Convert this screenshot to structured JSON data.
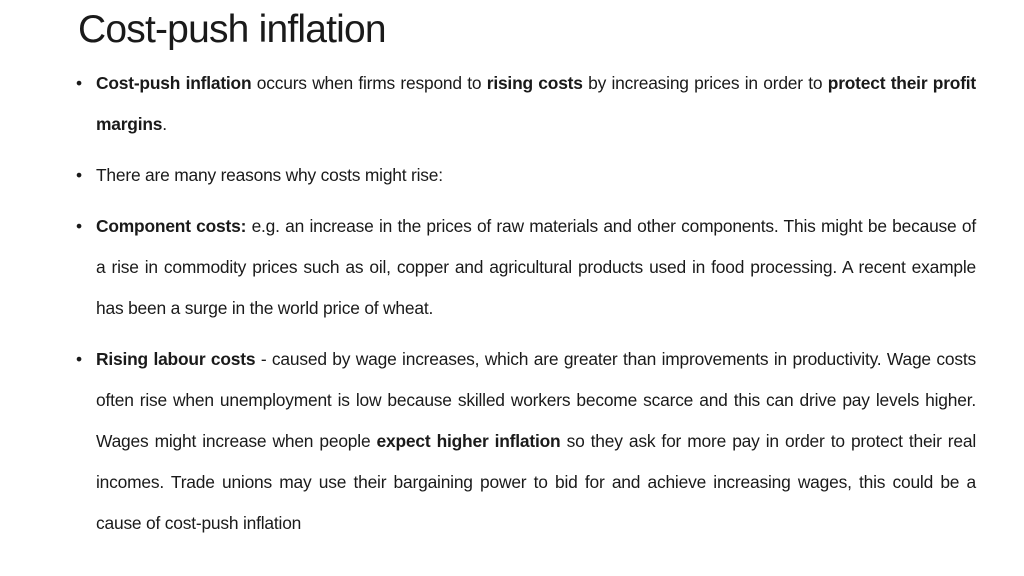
{
  "slide": {
    "title": "Cost-push inflation",
    "bullets": [
      {
        "parts": [
          {
            "text": "Cost-push inflation",
            "bold": true
          },
          {
            "text": " occurs when firms respond to ",
            "bold": false
          },
          {
            "text": "rising costs",
            "bold": true
          },
          {
            "text": " by increasing prices in order to ",
            "bold": false
          },
          {
            "text": "protect their profit margins",
            "bold": true
          },
          {
            "text": ".",
            "bold": false
          }
        ]
      },
      {
        "parts": [
          {
            "text": "There are many reasons why costs might rise:",
            "bold": false
          }
        ]
      },
      {
        "parts": [
          {
            "text": "Component costs:",
            "bold": true
          },
          {
            "text": " e.g. an increase in the prices of raw materials and other components. This might be because of a rise in commodity prices such as oil, copper and agricultural products used in food processing. A recent example has been a surge in the world price of wheat.",
            "bold": false
          }
        ]
      },
      {
        "parts": [
          {
            "text": "Rising labour costs",
            "bold": true
          },
          {
            "text": " - caused by wage increases, which are greater than improvements in productivity. Wage costs often rise when unemployment is low because skilled workers become scarce and this can drive pay levels higher. Wages might increase when people ",
            "bold": false
          },
          {
            "text": "expect higher inflation",
            "bold": true
          },
          {
            "text": " so they ask for more pay in order to protect their real incomes. Trade unions may use their bargaining power to bid for and achieve increasing wages, this could be a cause of cost-push inflation",
            "bold": false
          }
        ]
      }
    ]
  }
}
